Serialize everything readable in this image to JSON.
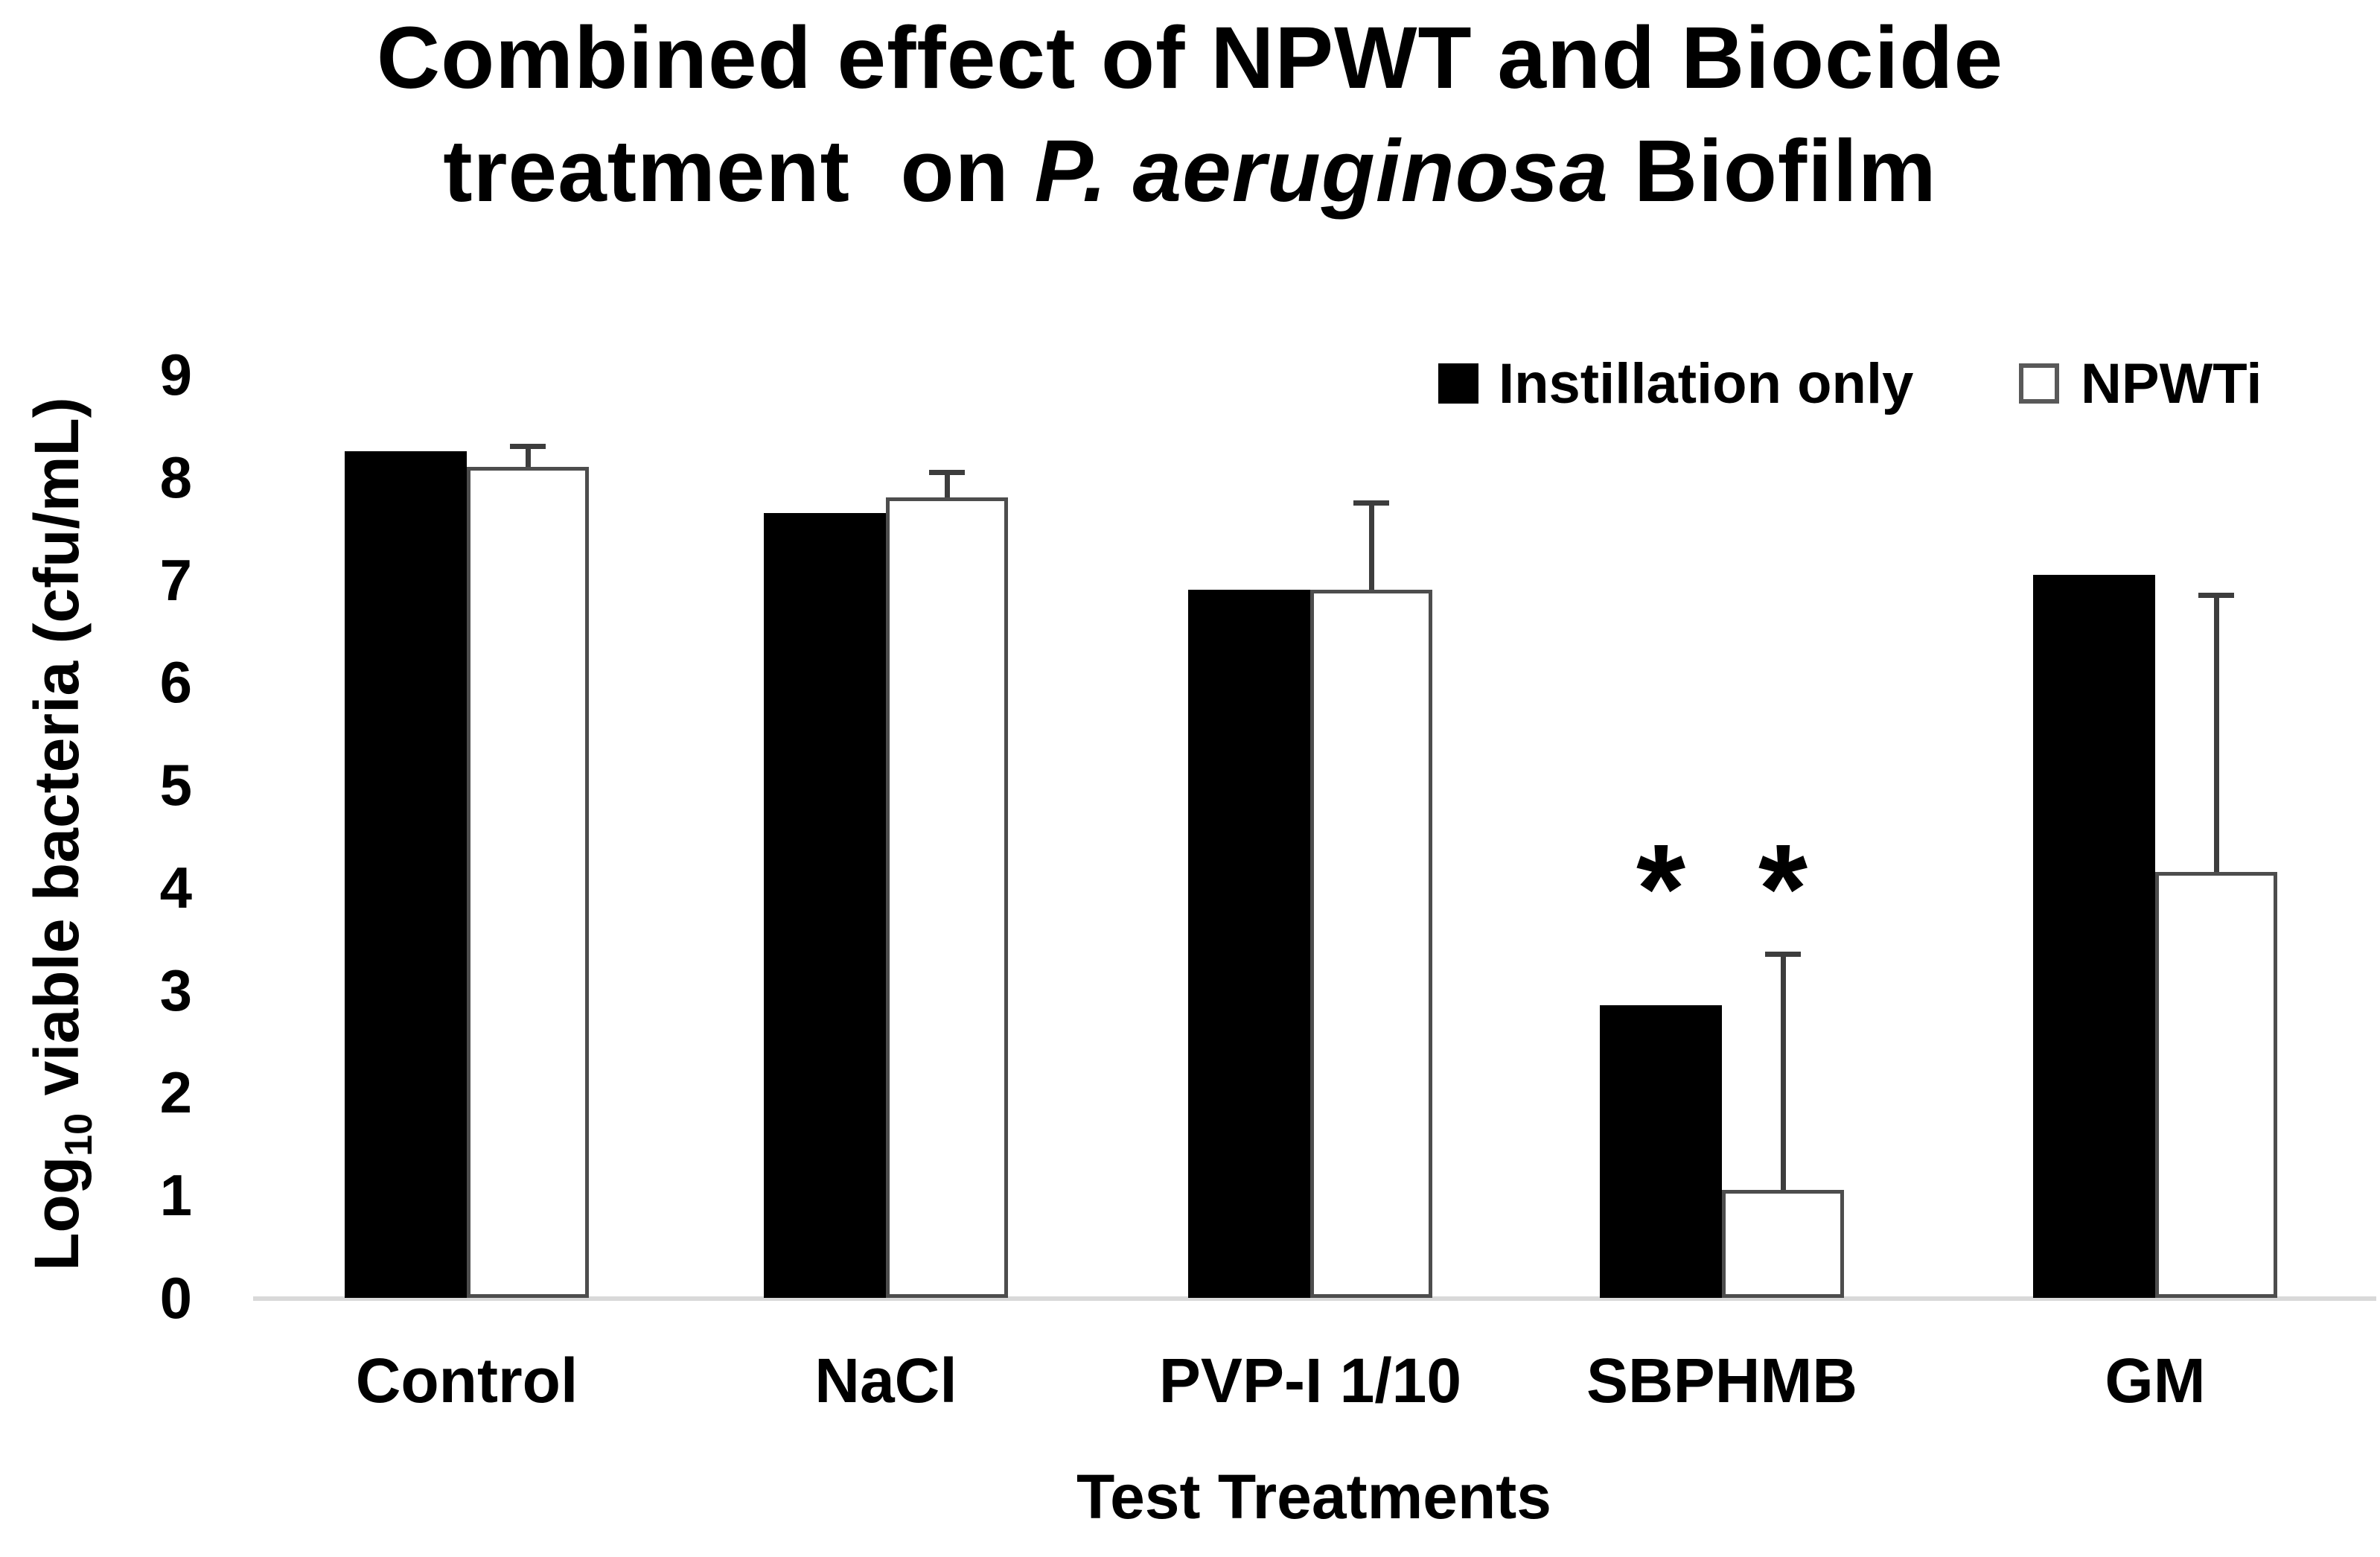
{
  "title": {
    "line1": "Combined effect of NPWT and Biocide",
    "line2_pre": "treatment  on ",
    "line2_italic": "P. aeruginosa",
    "line2_post": " Biofilm"
  },
  "legend": {
    "items": [
      {
        "label": "Instillation only",
        "swatch": "black-filled-square"
      },
      {
        "label": "NPWTi",
        "swatch": "white-outlined-square"
      }
    ]
  },
  "y_axis": {
    "label_pre": "Log",
    "label_sub": "10",
    "label_post": " viable bacteria (cfu/mL)",
    "ticks": [
      "9",
      "8",
      "7",
      "6",
      "5",
      "4",
      "3",
      "2",
      "1",
      "0"
    ]
  },
  "x_axis": {
    "label": "Test Treatments",
    "categories": [
      "Control",
      "NaCl",
      "PVP-I 1/10",
      "SBPHMB",
      "GM"
    ]
  },
  "colors": {
    "bar_fill_instillation": "#000000",
    "bar_fill_npwti": "#ffffff",
    "bar_border": "#4d4d4d",
    "error_bar": "#3d3d3d",
    "baseline": "#d9d9d9",
    "text": "#000000",
    "background": "#ffffff"
  },
  "chart_data": {
    "type": "bar",
    "title": "Combined effect of NPWT and Biocide treatment on P. aeruginosa Biofilm",
    "categories": [
      "Control",
      "NaCl",
      "PVP-I 1/10",
      "SBPHMB",
      "GM"
    ],
    "series": [
      {
        "name": "Instillation only",
        "fill": "#000000",
        "values": [
          8.25,
          7.65,
          6.9,
          2.85,
          7.05
        ]
      },
      {
        "name": "NPWTi",
        "fill": "#ffffff",
        "stroke": "#4d4d4d",
        "values": [
          8.1,
          7.8,
          6.9,
          1.05,
          4.15
        ],
        "error_plus": [
          0.2,
          0.25,
          0.85,
          2.3,
          2.7
        ]
      }
    ],
    "xlabel": "Test Treatments",
    "ylabel": "Log10 viable bacteria (cfu/mL)",
    "ylim": [
      0,
      9
    ],
    "yticks": [
      9,
      8,
      7,
      6,
      5,
      4,
      3,
      2,
      1,
      0
    ],
    "grid": false,
    "legend_position": "top-right",
    "annotations": [
      {
        "text": "*",
        "category": "SBPHMB",
        "series": "Instillation only",
        "y": 4.2
      },
      {
        "text": "*",
        "category": "SBPHMB",
        "series": "NPWTi",
        "y": 4.2
      }
    ]
  }
}
